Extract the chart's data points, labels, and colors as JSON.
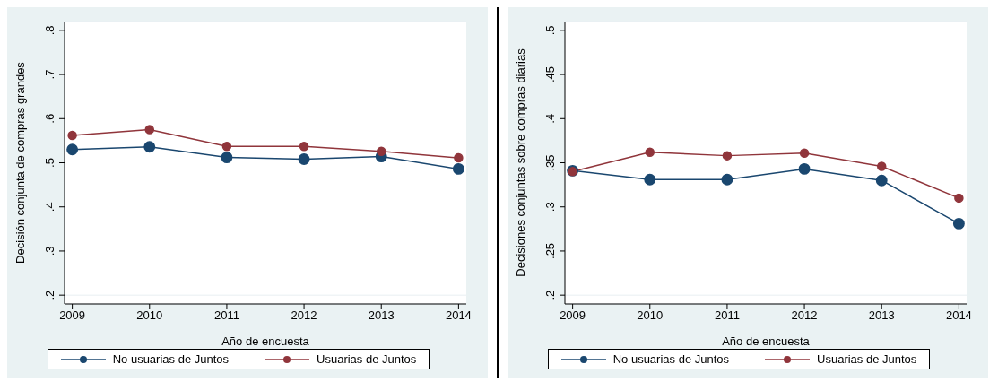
{
  "chart_data": [
    {
      "type": "line",
      "xlabel": "Año de encuesta",
      "ylabel": "Decisión conjunta de compras grandes",
      "x": [
        2009,
        2010,
        2011,
        2012,
        2013,
        2014
      ],
      "xlim": [
        2008.9,
        2014.1
      ],
      "xticks": [
        2009,
        2010,
        2011,
        2012,
        2013,
        2014
      ],
      "ylim": [
        0.18,
        0.82
      ],
      "yticks": [
        {
          "value": 0.2,
          "label": ".2"
        },
        {
          "value": 0.3,
          "label": ".3"
        },
        {
          "value": 0.4,
          "label": ".4"
        },
        {
          "value": 0.5,
          "label": ".5"
        },
        {
          "value": 0.6,
          "label": ".6"
        },
        {
          "value": 0.7,
          "label": ".7"
        },
        {
          "value": 0.8,
          "label": ".8"
        }
      ],
      "grid": "y",
      "legend": "bottom",
      "marker": "circle",
      "series": [
        {
          "name": "No usuarias de Juntos",
          "color": "#1a476f",
          "values": [
            0.53,
            0.536,
            0.512,
            0.508,
            0.514,
            0.486
          ]
        },
        {
          "name": "Usuarias de Juntos",
          "color": "#90353b",
          "values": [
            0.562,
            0.575,
            0.537,
            0.537,
            0.526,
            0.511
          ]
        }
      ]
    },
    {
      "type": "line",
      "xlabel": "Año de encuesta",
      "ylabel": "Decisiones conjuntas sobre compras diarias",
      "x": [
        2009,
        2010,
        2011,
        2012,
        2013,
        2014
      ],
      "xlim": [
        2008.9,
        2014.1
      ],
      "xticks": [
        2009,
        2010,
        2011,
        2012,
        2013,
        2014
      ],
      "ylim": [
        0.19,
        0.51
      ],
      "yticks": [
        {
          "value": 0.2,
          "label": ".2"
        },
        {
          "value": 0.25,
          "label": ".25"
        },
        {
          "value": 0.3,
          "label": ".3"
        },
        {
          "value": 0.35,
          "label": ".35"
        },
        {
          "value": 0.4,
          "label": ".4"
        },
        {
          "value": 0.45,
          "label": ".45"
        },
        {
          "value": 0.5,
          "label": ".5"
        }
      ],
      "grid": "y",
      "legend": "bottom",
      "marker": "circle",
      "series": [
        {
          "name": "No usuarias de Juntos",
          "color": "#1a476f",
          "values": [
            0.341,
            0.331,
            0.331,
            0.343,
            0.33,
            0.281
          ]
        },
        {
          "name": "Usuarias de Juntos",
          "color": "#90353b",
          "values": [
            0.34,
            0.362,
            0.358,
            0.361,
            0.346,
            0.31
          ]
        }
      ]
    }
  ]
}
